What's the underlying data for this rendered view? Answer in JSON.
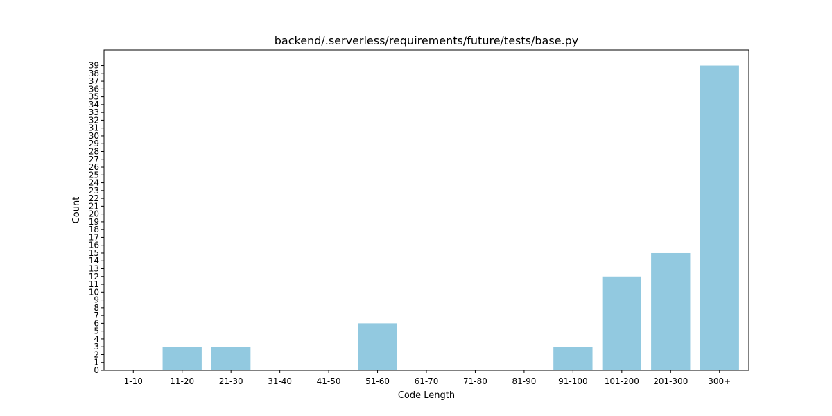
{
  "chart_data": {
    "type": "bar",
    "title": "backend/.serverless/requirements/future/tests/base.py",
    "xlabel": "Code Length",
    "ylabel": "Count",
    "categories": [
      "1-10",
      "11-20",
      "21-30",
      "31-40",
      "41-50",
      "51-60",
      "61-70",
      "71-80",
      "81-90",
      "91-100",
      "101-200",
      "201-300",
      "300+"
    ],
    "values": [
      0,
      3,
      3,
      0,
      0,
      6,
      0,
      0,
      0,
      3,
      12,
      15,
      39
    ],
    "ylim": [
      0,
      41
    ],
    "yticks": [
      0,
      1,
      2,
      3,
      4,
      5,
      6,
      7,
      8,
      9,
      10,
      11,
      12,
      13,
      14,
      15,
      16,
      17,
      18,
      19,
      20,
      21,
      22,
      23,
      24,
      25,
      26,
      27,
      28,
      29,
      30,
      31,
      32,
      33,
      34,
      35,
      36,
      37,
      38,
      39
    ],
    "bar_color": "#92c9e0",
    "grid": false,
    "legend": "none"
  }
}
